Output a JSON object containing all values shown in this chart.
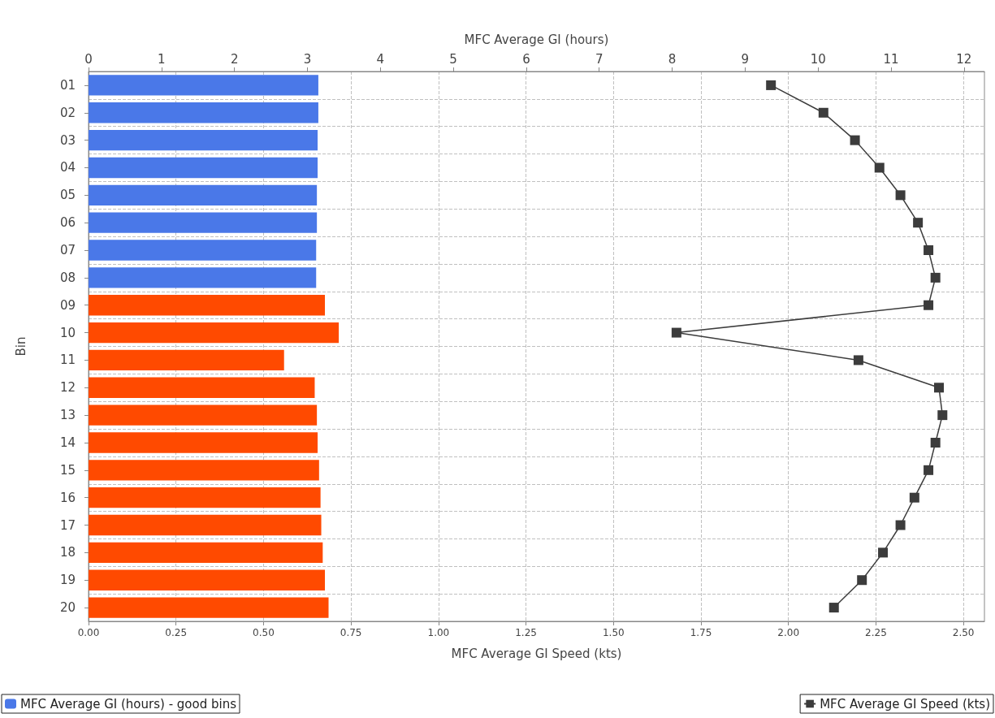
{
  "chart_data": {
    "type": "bar",
    "orientation": "horizontal",
    "xlabel": "MFC Average GI Speed (kts)",
    "x2label": "MFC Average GI (hours)",
    "ylabel": "Bin",
    "categories": [
      "01",
      "02",
      "03",
      "04",
      "05",
      "06",
      "07",
      "08",
      "09",
      "10",
      "11",
      "12",
      "13",
      "14",
      "15",
      "16",
      "17",
      "18",
      "19",
      "20"
    ],
    "series": [
      {
        "name": "MFC Average GI (hours) - good bins",
        "axis": "x2",
        "color": "#4a78e8",
        "values": [
          3.15,
          3.15,
          3.14,
          3.14,
          3.13,
          3.13,
          3.12,
          3.12,
          null,
          null,
          null,
          null,
          null,
          null,
          null,
          null,
          null,
          null,
          null,
          null
        ]
      },
      {
        "axis": "x2",
        "color": "#ff4a00",
        "values": [
          null,
          null,
          null,
          null,
          null,
          null,
          null,
          null,
          3.24,
          3.43,
          2.68,
          3.1,
          3.13,
          3.14,
          3.16,
          3.18,
          3.19,
          3.21,
          3.24,
          3.29
        ]
      },
      {
        "name": "MFC Average GI Speed (kts)",
        "type": "line",
        "color": "#3c3c3c",
        "marker": "square",
        "line_style": "solid",
        "values": [
          1.95,
          2.1,
          2.19,
          2.26,
          2.32,
          2.37,
          2.4,
          2.42,
          2.4,
          1.68,
          2.2,
          2.43,
          2.44,
          2.42,
          2.4,
          2.36,
          2.32,
          2.27,
          2.21,
          2.13
        ]
      }
    ],
    "xlim": [
      0,
      2.56
    ],
    "xticks": [
      {
        "value": 0,
        "label": "0.00"
      },
      {
        "value": 0.25,
        "label": "0.25"
      },
      {
        "value": 0.5,
        "label": "0.50"
      },
      {
        "value": 0.75,
        "label": "0.75"
      },
      {
        "value": 1,
        "label": "1.00"
      },
      {
        "value": 1.25,
        "label": "1.25"
      },
      {
        "value": 1.5,
        "label": "1.50"
      },
      {
        "value": 1.75,
        "label": "1.75"
      },
      {
        "value": 2,
        "label": "2.00"
      },
      {
        "value": 2.25,
        "label": "2.25"
      },
      {
        "value": 2.5,
        "label": "2.50"
      }
    ],
    "x2lim": [
      0,
      12.28
    ],
    "x2ticks": [
      0,
      1,
      2,
      3,
      4,
      5,
      6,
      7,
      8,
      9,
      10,
      11,
      12
    ],
    "grid": true,
    "legend": "bottom"
  }
}
